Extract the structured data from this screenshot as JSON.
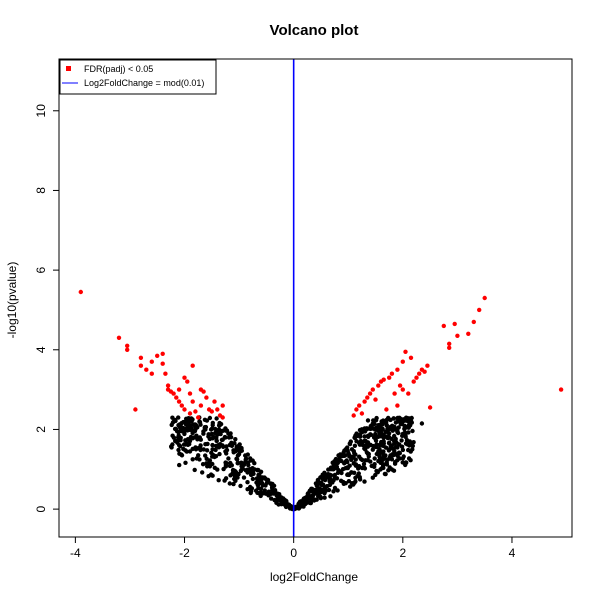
{
  "chart_data": {
    "type": "scatter",
    "title": "Volcano plot",
    "xlabel": "log2FoldChange",
    "ylabel": "-log10(pvalue)",
    "xlim": [
      -4.3,
      5.1
    ],
    "ylim": [
      -0.7,
      11.3
    ],
    "x_ticks": [
      -4,
      -2,
      0,
      2,
      4
    ],
    "y_ticks": [
      0,
      2,
      4,
      6,
      8,
      10
    ],
    "grid": false,
    "legend_position": "top-left",
    "legend": [
      {
        "label": "FDR(padj) < 0.05",
        "marker": "point",
        "color": "#ff0000"
      },
      {
        "label": "Log2FoldChange = mod(0.01)",
        "marker": "line",
        "color": "#0000ff"
      }
    ],
    "vline": {
      "x": 0,
      "color": "#0000ff"
    },
    "series": [
      {
        "color": "#ff0000",
        "points": [
          [
            -3.9,
            5.45
          ],
          [
            -3.2,
            4.3
          ],
          [
            -3.05,
            4.1
          ],
          [
            -3.05,
            4.0
          ],
          [
            -2.9,
            2.5
          ],
          [
            -2.8,
            3.8
          ],
          [
            -2.8,
            3.6
          ],
          [
            -2.7,
            3.5
          ],
          [
            -2.6,
            3.4
          ],
          [
            -2.6,
            3.7
          ],
          [
            -2.5,
            3.85
          ],
          [
            -2.4,
            3.9
          ],
          [
            -2.4,
            3.65
          ],
          [
            -2.35,
            3.4
          ],
          [
            -2.3,
            3.1
          ],
          [
            -2.3,
            3.0
          ],
          [
            -2.25,
            2.95
          ],
          [
            -2.2,
            2.9
          ],
          [
            -2.15,
            2.8
          ],
          [
            -2.1,
            3.0
          ],
          [
            -2.1,
            2.7
          ],
          [
            -2.05,
            2.6
          ],
          [
            -2.0,
            3.3
          ],
          [
            -2.0,
            2.5
          ],
          [
            -1.95,
            3.2
          ],
          [
            -1.9,
            2.9
          ],
          [
            -1.9,
            2.4
          ],
          [
            -1.85,
            3.6
          ],
          [
            -1.85,
            2.7
          ],
          [
            -1.8,
            2.45
          ],
          [
            -1.75,
            2.3
          ],
          [
            -1.7,
            3.0
          ],
          [
            -1.7,
            2.6
          ],
          [
            -1.65,
            2.95
          ],
          [
            -1.6,
            2.8
          ],
          [
            -1.55,
            2.5
          ],
          [
            -1.5,
            2.45
          ],
          [
            -1.45,
            2.7
          ],
          [
            -1.4,
            2.5
          ],
          [
            -1.35,
            2.35
          ],
          [
            -1.3,
            2.6
          ],
          [
            -1.3,
            2.3
          ],
          [
            1.1,
            2.35
          ],
          [
            1.15,
            2.5
          ],
          [
            1.2,
            2.6
          ],
          [
            1.25,
            2.4
          ],
          [
            1.3,
            2.7
          ],
          [
            1.35,
            2.8
          ],
          [
            1.4,
            2.9
          ],
          [
            1.45,
            3.0
          ],
          [
            1.5,
            2.75
          ],
          [
            1.55,
            3.1
          ],
          [
            1.6,
            3.2
          ],
          [
            1.65,
            3.25
          ],
          [
            1.7,
            2.5
          ],
          [
            1.75,
            3.3
          ],
          [
            1.8,
            3.4
          ],
          [
            1.85,
            2.9
          ],
          [
            1.9,
            3.5
          ],
          [
            1.9,
            2.6
          ],
          [
            1.95,
            3.1
          ],
          [
            2.0,
            3.7
          ],
          [
            2.0,
            3.0
          ],
          [
            2.05,
            3.95
          ],
          [
            2.1,
            2.9
          ],
          [
            2.15,
            3.8
          ],
          [
            2.2,
            3.2
          ],
          [
            2.25,
            3.3
          ],
          [
            2.3,
            3.4
          ],
          [
            2.35,
            3.5
          ],
          [
            2.4,
            3.45
          ],
          [
            2.45,
            3.6
          ],
          [
            2.5,
            2.55
          ],
          [
            2.75,
            4.6
          ],
          [
            2.85,
            4.15
          ],
          [
            2.85,
            4.05
          ],
          [
            2.95,
            4.65
          ],
          [
            3.0,
            4.35
          ],
          [
            3.2,
            4.4
          ],
          [
            3.3,
            4.7
          ],
          [
            3.4,
            5.0
          ],
          [
            3.5,
            5.3
          ],
          [
            4.9,
            3.0
          ]
        ]
      }
    ]
  }
}
